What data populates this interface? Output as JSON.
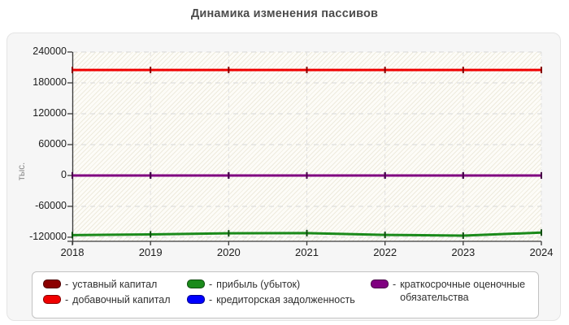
{
  "title": "Динамика изменения пассивов",
  "chart_data": {
    "type": "line",
    "title": "Динамика изменения пассивов",
    "ylabel": "тыс.",
    "xlabel": "",
    "x": [
      2018,
      2019,
      2020,
      2021,
      2022,
      2023,
      2024
    ],
    "y_ticks": [
      240000,
      180000,
      120000,
      60000,
      0,
      -60000,
      -120000
    ],
    "ylim": [
      -128000,
      240000
    ],
    "grid": "dashed horizontal and vertical gridlines",
    "legend_position": "bottom",
    "plot_background": "cream diagonal hatch on ivory",
    "series": [
      {
        "name": "уставный капитал",
        "color": "#8b0000",
        "values": [
          0,
          0,
          0,
          0,
          0,
          0,
          0
        ]
      },
      {
        "name": "добавочный капитал",
        "color": "#f00000",
        "values": [
          205000,
          205000,
          205000,
          205000,
          205000,
          205000,
          205000
        ]
      },
      {
        "name": "прибыль (убыток)",
        "color": "#1a8a1a",
        "values": [
          -116000,
          -114500,
          -112500,
          -112000,
          -115500,
          -117000,
          -111000
        ]
      },
      {
        "name": "кредиторская задолженность",
        "color": "#0000ff",
        "values": [
          0,
          0,
          0,
          0,
          0,
          0,
          0
        ]
      },
      {
        "name": "краткосрочные оценочные обязательства",
        "color": "#800080",
        "values": [
          0,
          0,
          0,
          0,
          0,
          0,
          0
        ]
      }
    ],
    "legend_dash": "-"
  }
}
